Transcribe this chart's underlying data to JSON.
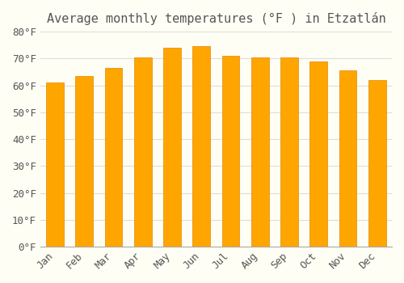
{
  "title": "Average monthly temperatures (°F ) in Etzatlán",
  "months": [
    "Jan",
    "Feb",
    "Mar",
    "Apr",
    "May",
    "Jun",
    "Jul",
    "Aug",
    "Sep",
    "Oct",
    "Nov",
    "Dec"
  ],
  "values": [
    61.0,
    63.5,
    66.5,
    70.5,
    74.0,
    74.5,
    71.0,
    70.5,
    70.5,
    69.0,
    65.5,
    62.0
  ],
  "bar_color_main": "#FFA500",
  "bar_color_edge": "#E08800",
  "background_color": "#FFFEF5",
  "grid_color": "#DDDDDD",
  "text_color": "#555555",
  "ylim": [
    0,
    80
  ],
  "yticks": [
    0,
    10,
    20,
    30,
    40,
    50,
    60,
    70,
    80
  ],
  "title_fontsize": 11,
  "tick_fontsize": 9,
  "bar_width": 0.6
}
